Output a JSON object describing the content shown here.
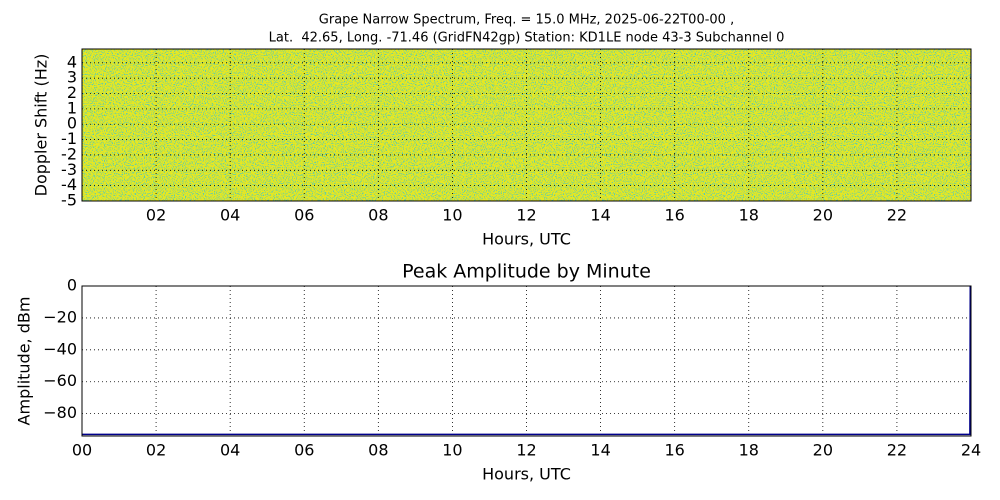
{
  "chart_data": [
    {
      "type": "heatmap",
      "title": [
        "Grape Narrow Spectrum, Freq. = 15.0 MHz, 2025-06-22T00-00 ,",
        "Lat.  42.65, Long. -71.46 (GridFN42gp) Station: KD1LE node 43-3 Subchannel 0"
      ],
      "xlabel": "Hours, UTC",
      "ylabel": "Doppler Shift (Hz)",
      "xlim": [
        0,
        24
      ],
      "ylim": [
        -5,
        4.9
      ],
      "xticks": [
        {
          "value": 2,
          "label": "02"
        },
        {
          "value": 4,
          "label": "04"
        },
        {
          "value": 6,
          "label": "06"
        },
        {
          "value": 8,
          "label": "08"
        },
        {
          "value": 10,
          "label": "10"
        },
        {
          "value": 12,
          "label": "12"
        },
        {
          "value": 14,
          "label": "14"
        },
        {
          "value": 16,
          "label": "16"
        },
        {
          "value": 18,
          "label": "18"
        },
        {
          "value": 20,
          "label": "20"
        },
        {
          "value": 22,
          "label": "22"
        }
      ],
      "yticks": [
        -5,
        -4,
        -3,
        -2,
        -1,
        0,
        1,
        2,
        3,
        4
      ],
      "grid": true
    },
    {
      "type": "line",
      "title": "Peak Amplitude by Minute",
      "xlabel": "Hours, UTC",
      "ylabel": "Amplitude, dBm",
      "x": [
        0,
        23.97,
        23.98
      ],
      "values": [
        -93,
        -93,
        0
      ],
      "color": "#00008b",
      "xlim": [
        0,
        24
      ],
      "ylim": [
        -94,
        0
      ],
      "xticks": [
        {
          "value": 0,
          "label": "00"
        },
        {
          "value": 2,
          "label": "02"
        },
        {
          "value": 4,
          "label": "04"
        },
        {
          "value": 6,
          "label": "06"
        },
        {
          "value": 8,
          "label": "08"
        },
        {
          "value": 10,
          "label": "10"
        },
        {
          "value": 12,
          "label": "12"
        },
        {
          "value": 14,
          "label": "14"
        },
        {
          "value": 16,
          "label": "16"
        },
        {
          "value": 18,
          "label": "18"
        },
        {
          "value": 20,
          "label": "20"
        },
        {
          "value": 22,
          "label": "22"
        },
        {
          "value": 24,
          "label": "24"
        }
      ],
      "yticks": [
        0,
        {
          "value": -20,
          "label": "−20"
        },
        {
          "value": -40,
          "label": "−40"
        },
        {
          "value": -60,
          "label": "−60"
        },
        {
          "value": -80,
          "label": "−80"
        }
      ],
      "grid": true
    }
  ]
}
